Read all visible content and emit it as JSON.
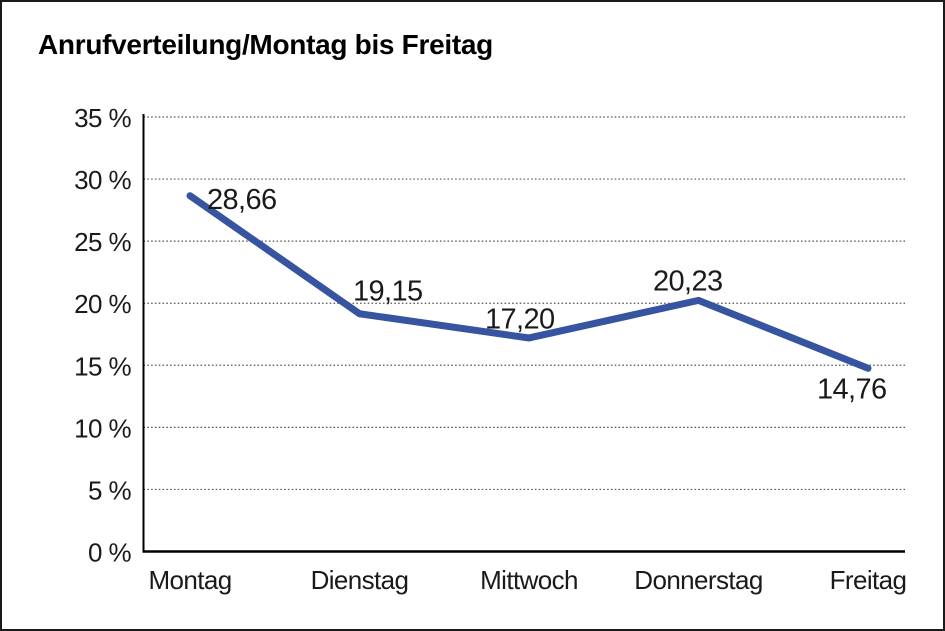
{
  "chart_data": {
    "type": "line",
    "title": "Anrufverteilung/Montag bis Freitag",
    "categories": [
      "Montag",
      "Dienstag",
      "Mittwoch",
      "Donnerstag",
      "Freitag"
    ],
    "values": [
      28.66,
      19.15,
      17.2,
      20.23,
      14.76
    ],
    "value_labels": [
      "28,66",
      "19,15",
      "17,20",
      "20,23",
      "14,76"
    ],
    "y_ticks": [
      0,
      5,
      10,
      15,
      20,
      25,
      30,
      35
    ],
    "y_tick_labels": [
      "0 %",
      "5 %",
      "10 %",
      "15 %",
      "20 %",
      "25 %",
      "30 %",
      "35 %"
    ],
    "ylim": [
      0,
      35
    ],
    "xlabel": "",
    "ylabel": "",
    "grid": "dotted-horizontal",
    "legend": "none",
    "line_color": "#36549F",
    "text_color": "#1a1a1a",
    "background_color": "#ffffff",
    "border_color": "#1a1a1a"
  }
}
